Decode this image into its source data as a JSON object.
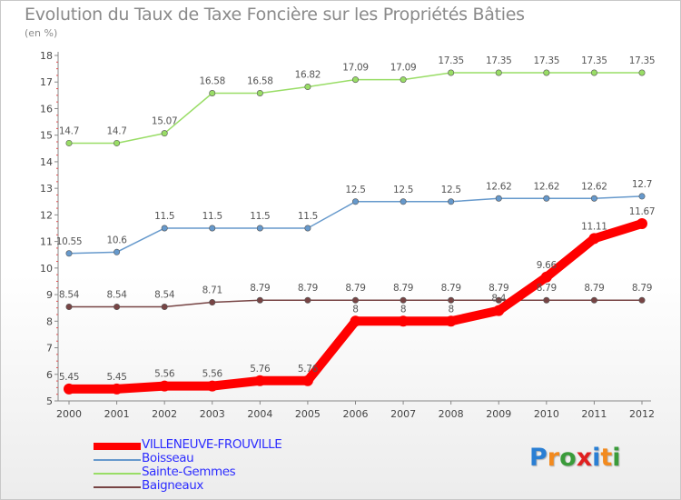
{
  "header": {
    "title": "Evolution du Taux de Taxe Foncière sur les Propriétés Bâties",
    "subtitle": "(en %)"
  },
  "logo": {
    "text": "Proxiti",
    "letter_colors": [
      "#2a7fd4",
      "#f28a1e",
      "#3a9b3a",
      "#e02020",
      "#2a7fd4",
      "#f28a1e",
      "#3a9b3a"
    ]
  },
  "chart_data": {
    "type": "line",
    "x": [
      "2000",
      "2001",
      "2002",
      "2003",
      "2004",
      "2005",
      "2006",
      "2007",
      "2008",
      "2009",
      "2010",
      "2011",
      "2012"
    ],
    "ylim": [
      5,
      18
    ],
    "yticks": [
      "5",
      "6",
      "7",
      "8",
      "9",
      "10",
      "11",
      "12",
      "13",
      "14",
      "15",
      "16",
      "17",
      "18"
    ],
    "grid": false,
    "legend_position": "bottom-left",
    "series": [
      {
        "name": "VILLENEUVE-FROUVILLE",
        "color": "#ff0000",
        "values": [
          5.45,
          5.45,
          5.56,
          5.56,
          5.76,
          5.76,
          8,
          8,
          8,
          8.4,
          9.66,
          11.11,
          11.67
        ],
        "labels": [
          "5.45",
          "5.45",
          "5.56",
          "5.56",
          "5.76",
          "5.76",
          "8",
          "8",
          "8",
          "8.4",
          "9.66",
          "11.11",
          "11.67"
        ]
      },
      {
        "name": "Boisseau",
        "color": "#6699cc",
        "values": [
          10.55,
          10.6,
          11.5,
          11.5,
          11.5,
          11.5,
          12.5,
          12.5,
          12.5,
          12.62,
          12.62,
          12.62,
          12.7
        ],
        "labels": [
          "10.55",
          "10.6",
          "11.5",
          "11.5",
          "11.5",
          "11.5",
          "12.5",
          "12.5",
          "12.5",
          "12.62",
          "12.62",
          "12.62",
          "12.7"
        ]
      },
      {
        "name": "Sainte-Gemmes",
        "color": "#99dd66",
        "values": [
          14.7,
          14.7,
          15.07,
          16.58,
          16.58,
          16.82,
          17.09,
          17.09,
          17.35,
          17.35,
          17.35,
          17.35,
          17.35
        ],
        "labels": [
          "14.7",
          "14.7",
          "15.07",
          "16.58",
          "16.58",
          "16.82",
          "17.09",
          "17.09",
          "17.35",
          "17.35",
          "17.35",
          "17.35",
          "17.35"
        ]
      },
      {
        "name": "Baigneaux",
        "color": "#774444",
        "values": [
          8.54,
          8.54,
          8.54,
          8.71,
          8.79,
          8.79,
          8.79,
          8.79,
          8.79,
          8.79,
          8.79,
          8.79,
          8.79
        ],
        "labels": [
          "8.54",
          "8.54",
          "8.54",
          "8.71",
          "8.79",
          "8.79",
          "8.79",
          "8.79",
          "8.79",
          "8.79",
          "8.79",
          "8.79",
          "8.79"
        ]
      }
    ]
  }
}
